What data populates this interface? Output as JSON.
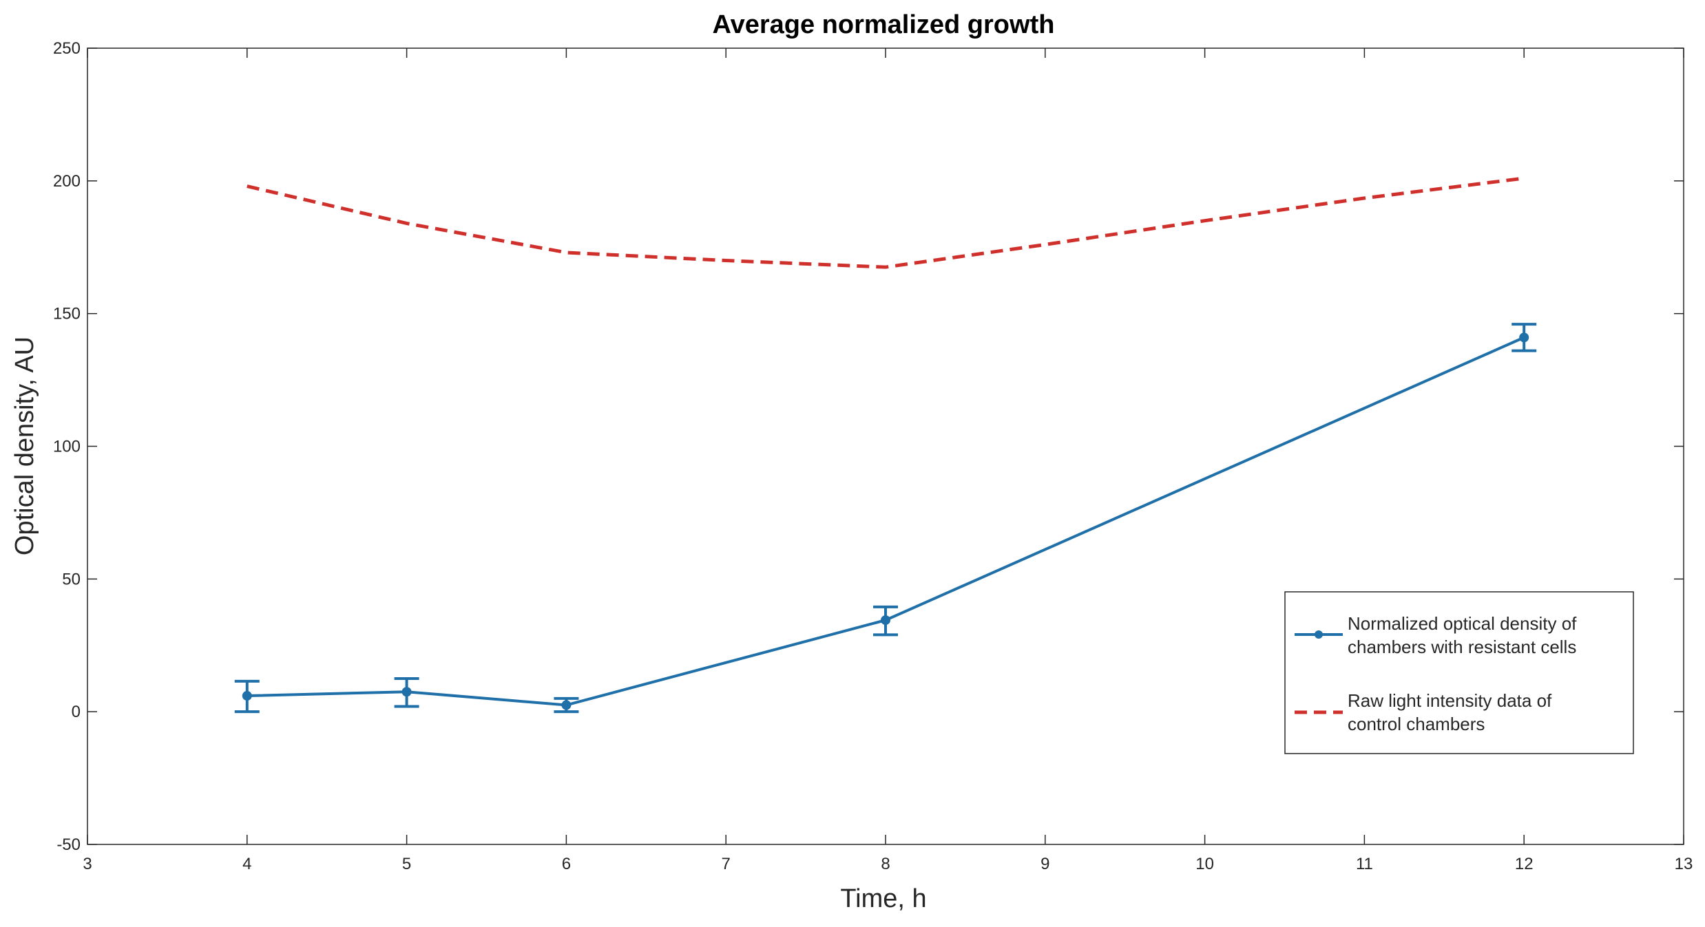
{
  "chart_data": {
    "type": "line",
    "title": "Average normalized growth",
    "xlabel": "Time, h",
    "ylabel": "Optical density, AU",
    "xlim": [
      3,
      13
    ],
    "ylim": [
      -50,
      250
    ],
    "xticks": [
      3,
      4,
      5,
      6,
      7,
      8,
      9,
      10,
      11,
      12,
      13
    ],
    "yticks": [
      -50,
      0,
      50,
      100,
      150,
      200,
      250
    ],
    "grid": false,
    "legend_position": "lower-right",
    "series": [
      {
        "name": "Normalized optical density of chambers with resistant cells",
        "legend_lines": [
          "Normalized optical density of",
          "chambers with resistant cells"
        ],
        "style": "solid-marker-errorbar",
        "color": "#1f6fa8",
        "x": [
          4,
          5,
          6,
          8,
          12
        ],
        "y": [
          6,
          7.5,
          2.5,
          34.5,
          141
        ],
        "err_low": [
          6,
          5.5,
          2.5,
          5.5,
          5
        ],
        "err_high": [
          5.5,
          5,
          2.5,
          5,
          5
        ]
      },
      {
        "name": "Raw light intensity data of control chambers",
        "legend_lines": [
          "Raw light intensity data of",
          "control chambers"
        ],
        "style": "dashed",
        "color": "#d0302b",
        "x": [
          4,
          5,
          6,
          7,
          8,
          9,
          10,
          11,
          12
        ],
        "y": [
          198,
          184,
          173,
          170,
          167.5,
          176,
          185,
          193.5,
          201
        ]
      }
    ]
  }
}
